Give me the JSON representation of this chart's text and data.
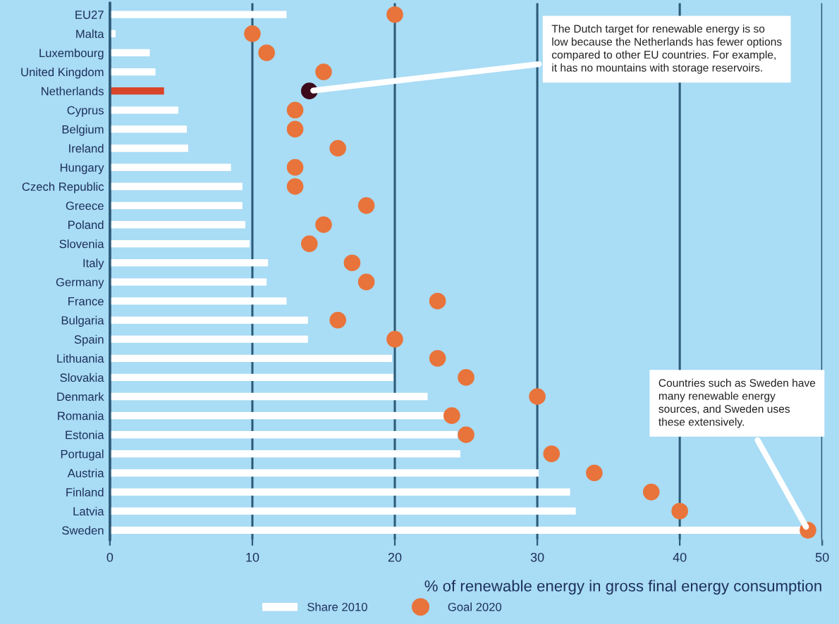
{
  "chart_data": {
    "type": "bar",
    "orientation": "horizontal",
    "categories": [
      "EU27",
      "Malta",
      "Luxembourg",
      "United Kingdom",
      "Netherlands",
      "Cyprus",
      "Belgium",
      "Ireland",
      "Hungary",
      "Czech Republic",
      "Greece",
      "Poland",
      "Slovenia",
      "Italy",
      "Germany",
      "France",
      "Bulgaria",
      "Spain",
      "Lithuania",
      "Slovakia",
      "Denmark",
      "Romania",
      "Estonia",
      "Portugal",
      "Austria",
      "Finland",
      "Latvia",
      "Sweden"
    ],
    "series": [
      {
        "name": "Share 2010",
        "color": "#ffffff",
        "colors": [
          "#ffffff",
          "#ffffff",
          "#ffffff",
          "#ffffff",
          "#d9452b",
          "#ffffff",
          "#ffffff",
          "#ffffff",
          "#ffffff",
          "#ffffff",
          "#ffffff",
          "#ffffff",
          "#ffffff",
          "#ffffff",
          "#ffffff",
          "#ffffff",
          "#ffffff",
          "#ffffff",
          "#ffffff",
          "#ffffff",
          "#ffffff",
          "#ffffff",
          "#ffffff",
          "#ffffff",
          "#ffffff",
          "#ffffff",
          "#ffffff",
          "#ffffff"
        ],
        "values": [
          12.4,
          0.4,
          2.8,
          3.2,
          3.8,
          4.8,
          5.4,
          5.5,
          8.5,
          9.3,
          9.3,
          9.5,
          9.8,
          11.1,
          11.0,
          12.4,
          13.9,
          13.9,
          19.8,
          19.9,
          22.3,
          23.6,
          24.4,
          24.6,
          30.1,
          32.3,
          32.7,
          48.5
        ]
      },
      {
        "name": "Goal 2020",
        "type": "scatter",
        "color": "#e8743b",
        "colors": [
          "#e8743b",
          "#e8743b",
          "#e8743b",
          "#e8743b",
          "#3d0a1c",
          "#e8743b",
          "#e8743b",
          "#e8743b",
          "#e8743b",
          "#e8743b",
          "#e8743b",
          "#e8743b",
          "#e8743b",
          "#e8743b",
          "#e8743b",
          "#e8743b",
          "#e8743b",
          "#e8743b",
          "#e8743b",
          "#e8743b",
          "#e8743b",
          "#e8743b",
          "#e8743b",
          "#e8743b",
          "#e8743b",
          "#e8743b",
          "#e8743b",
          "#e8743b"
        ],
        "values": [
          20,
          10,
          11,
          15,
          14,
          13,
          13,
          16,
          13,
          13,
          18,
          15,
          14,
          17,
          18,
          23,
          16,
          20,
          23,
          25,
          30,
          24,
          25,
          31,
          34,
          38,
          40,
          49
        ]
      }
    ],
    "xlim": [
      0,
      50
    ],
    "xticks": [
      0,
      10,
      20,
      30,
      40,
      50
    ],
    "xlabel": "% of renewable energy in gross final energy consumption",
    "grid": "x",
    "legend": "bottom",
    "marker": "circle",
    "annotations": [
      {
        "text": "The Dutch target for renewable energy is so low because the Netherlands has fewer options compared to other EU countries. For example, it has no mountains with storage reservoirs.",
        "x": 14,
        "y": "Netherlands"
      },
      {
        "text": "Countries such as Sweden have many renewable energy sources, and Sweden uses these extensively.",
        "x": 49,
        "y": "Sweden"
      }
    ]
  }
}
